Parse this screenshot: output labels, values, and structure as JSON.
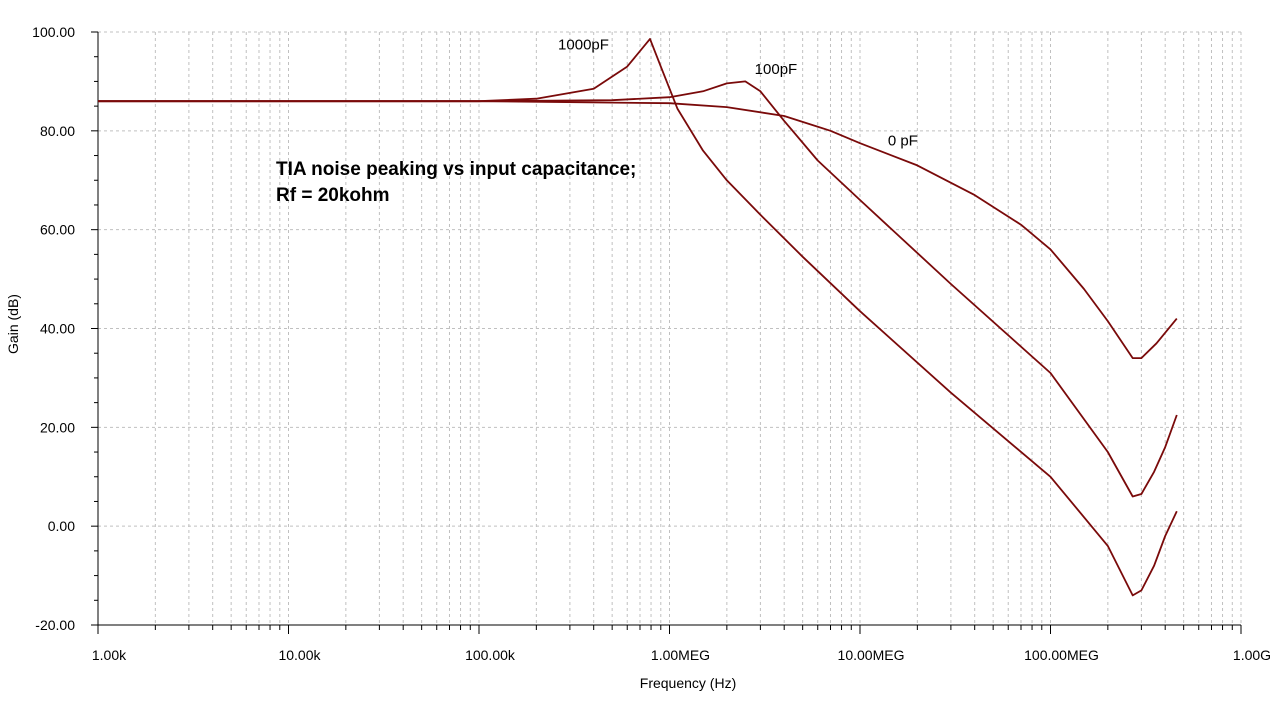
{
  "chart_data": {
    "type": "line",
    "x_scale": "log",
    "xlim": [
      1000,
      1000000000
    ],
    "ylim": [
      -20,
      100
    ],
    "xlabel": "Frequency (Hz)",
    "ylabel": "Gain (dB)",
    "grid": true,
    "x_ticks": [
      {
        "value": 1000,
        "label": "1.00k"
      },
      {
        "value": 10000,
        "label": "10.00k"
      },
      {
        "value": 100000,
        "label": "100.00k"
      },
      {
        "value": 1000000,
        "label": "1.00MEG"
      },
      {
        "value": 10000000,
        "label": "10.00MEG"
      },
      {
        "value": 100000000,
        "label": "100.00MEG"
      },
      {
        "value": 1000000000,
        "label": "1.00G"
      }
    ],
    "y_ticks": [
      {
        "value": 100,
        "label": "100.00"
      },
      {
        "value": 80,
        "label": "80.00"
      },
      {
        "value": 60,
        "label": "60.00"
      },
      {
        "value": 40,
        "label": "40.00"
      },
      {
        "value": 20,
        "label": "20.00"
      },
      {
        "value": 0,
        "label": "0.00"
      },
      {
        "value": -20,
        "label": "-20.00"
      }
    ],
    "annotation": [
      "TIA noise peaking vs input capacitance;",
      "Rf = 20kohm"
    ],
    "color": "#7a0a0a",
    "series": [
      {
        "name": "1000pF",
        "label_at": [
          260000,
          96.5
        ],
        "points": [
          [
            1000,
            86
          ],
          [
            100000,
            86
          ],
          [
            200000,
            86.5
          ],
          [
            400000,
            88.5
          ],
          [
            600000,
            93
          ],
          [
            790000,
            98.6
          ],
          [
            900000,
            93
          ],
          [
            1100000,
            84.5
          ],
          [
            1500000,
            76
          ],
          [
            2000000,
            70
          ],
          [
            3000000,
            63
          ],
          [
            5000000,
            54.5
          ],
          [
            10000000,
            43.5
          ],
          [
            30000000,
            27
          ],
          [
            100000000,
            10
          ],
          [
            200000000,
            -4
          ],
          [
            270000000,
            -14
          ],
          [
            300000000,
            -13
          ],
          [
            350000000,
            -8
          ],
          [
            400000000,
            -2
          ],
          [
            460000000,
            3
          ]
        ]
      },
      {
        "name": "100pF",
        "label_at": [
          2800000,
          91.5
        ],
        "points": [
          [
            1000,
            86
          ],
          [
            100000,
            86
          ],
          [
            500000,
            86.2
          ],
          [
            1000000,
            86.8
          ],
          [
            1500000,
            88
          ],
          [
            2000000,
            89.6
          ],
          [
            2500000,
            90
          ],
          [
            3000000,
            88
          ],
          [
            4000000,
            82
          ],
          [
            6000000,
            74
          ],
          [
            10000000,
            66
          ],
          [
            30000000,
            49
          ],
          [
            100000000,
            31
          ],
          [
            200000000,
            15
          ],
          [
            270000000,
            6
          ],
          [
            300000000,
            6.5
          ],
          [
            350000000,
            11
          ],
          [
            400000000,
            16
          ],
          [
            460000000,
            22.5
          ]
        ]
      },
      {
        "name": "0 pF",
        "label_at": [
          14000000,
          77
        ],
        "points": [
          [
            1000,
            86
          ],
          [
            100000,
            86
          ],
          [
            1000000,
            85.6
          ],
          [
            2000000,
            84.8
          ],
          [
            4000000,
            83
          ],
          [
            7000000,
            80
          ],
          [
            10000000,
            77.5
          ],
          [
            20000000,
            73
          ],
          [
            40000000,
            67
          ],
          [
            70000000,
            61
          ],
          [
            100000000,
            56
          ],
          [
            150000000,
            48
          ],
          [
            200000000,
            41.5
          ],
          [
            270000000,
            34
          ],
          [
            300000000,
            34
          ],
          [
            360000000,
            37
          ],
          [
            460000000,
            42
          ]
        ]
      }
    ]
  }
}
